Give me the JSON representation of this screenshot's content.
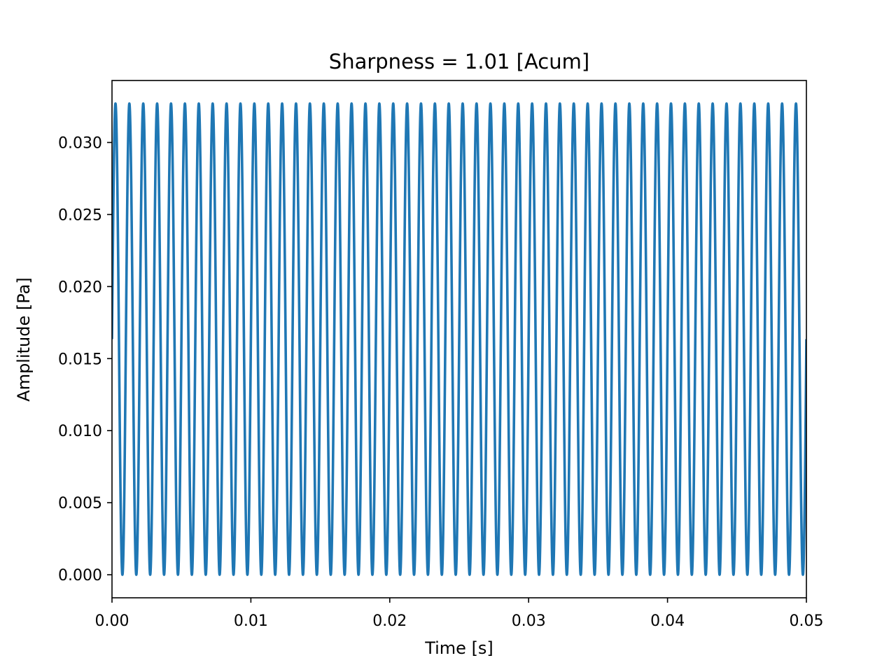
{
  "chart_data": {
    "type": "line",
    "title": "Sharpness = 1.01 [Acum]",
    "xlabel": "Time [s]",
    "ylabel": "Amplitude [Pa]",
    "xlim": [
      0.0,
      0.05
    ],
    "ylim": [
      -0.0016,
      0.0343
    ],
    "x_ticks": [
      0.0,
      0.01,
      0.02,
      0.03,
      0.04,
      0.05
    ],
    "x_tick_labels": [
      "0.00",
      "0.01",
      "0.02",
      "0.03",
      "0.04",
      "0.05"
    ],
    "y_ticks": [
      0.0,
      0.005,
      0.01,
      0.015,
      0.02,
      0.025,
      0.03
    ],
    "y_tick_labels": [
      "0.000",
      "0.005",
      "0.010",
      "0.015",
      "0.020",
      "0.025",
      "0.030"
    ],
    "grid": false,
    "legend": "none",
    "series": [
      {
        "description": "Sinusoidal pressure signal, 1000 Hz, oscillating between 0.000 and 0.0327 Pa (offset 0.01635, amplitude 0.01635), starting at the midpoint",
        "color": "#1f77b4",
        "frequency_hz": 1000,
        "offset": 0.01635,
        "amplitude": 0.01635,
        "phase_rad": 0,
        "t_start": 0.0,
        "t_end": 0.05
      }
    ]
  }
}
